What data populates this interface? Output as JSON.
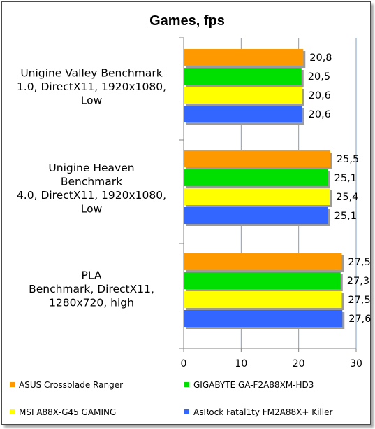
{
  "chart_data": {
    "type": "bar",
    "orientation": "horizontal",
    "title": "Games,  fps",
    "categories": [
      [
        "Unigine Valley Benchmark",
        "1.0, DirectX11, 1920x1080,",
        "Low"
      ],
      [
        "Unigine Heaven",
        "Benchmark",
        "4.0, DirectX11, 1920x1080,",
        "Low"
      ],
      [
        "PLA",
        "Benchmark, DirectX11,",
        "1280x720, high"
      ]
    ],
    "series": [
      {
        "name": "ASUS Crossblade Ranger",
        "color": "#ff9900",
        "values": [
          20.8,
          25.5,
          27.5
        ],
        "labels": [
          "20,8",
          "25,5",
          "27,5"
        ]
      },
      {
        "name": "GIGABYTE GA-F2A88XM-HD3",
        "color": "#00e000",
        "values": [
          20.5,
          25.1,
          27.3
        ],
        "labels": [
          "20,5",
          "25,1",
          "27,3"
        ]
      },
      {
        "name": "MSI A88X-G45 GAMING",
        "color": "#ffff00",
        "values": [
          20.6,
          25.4,
          27.5
        ],
        "labels": [
          "20,6",
          "25,4",
          "27,5"
        ]
      },
      {
        "name": "AsRock Fatal1ty FM2A88X+ Killer",
        "color": "#3366ff",
        "values": [
          20.6,
          25.1,
          27.6
        ],
        "labels": [
          "20,6",
          "25,1",
          "27,6"
        ]
      }
    ],
    "xlim": [
      0,
      30
    ],
    "xticks": [
      "0",
      "10",
      "20",
      "30"
    ],
    "grid": true,
    "legend_position": "bottom"
  }
}
